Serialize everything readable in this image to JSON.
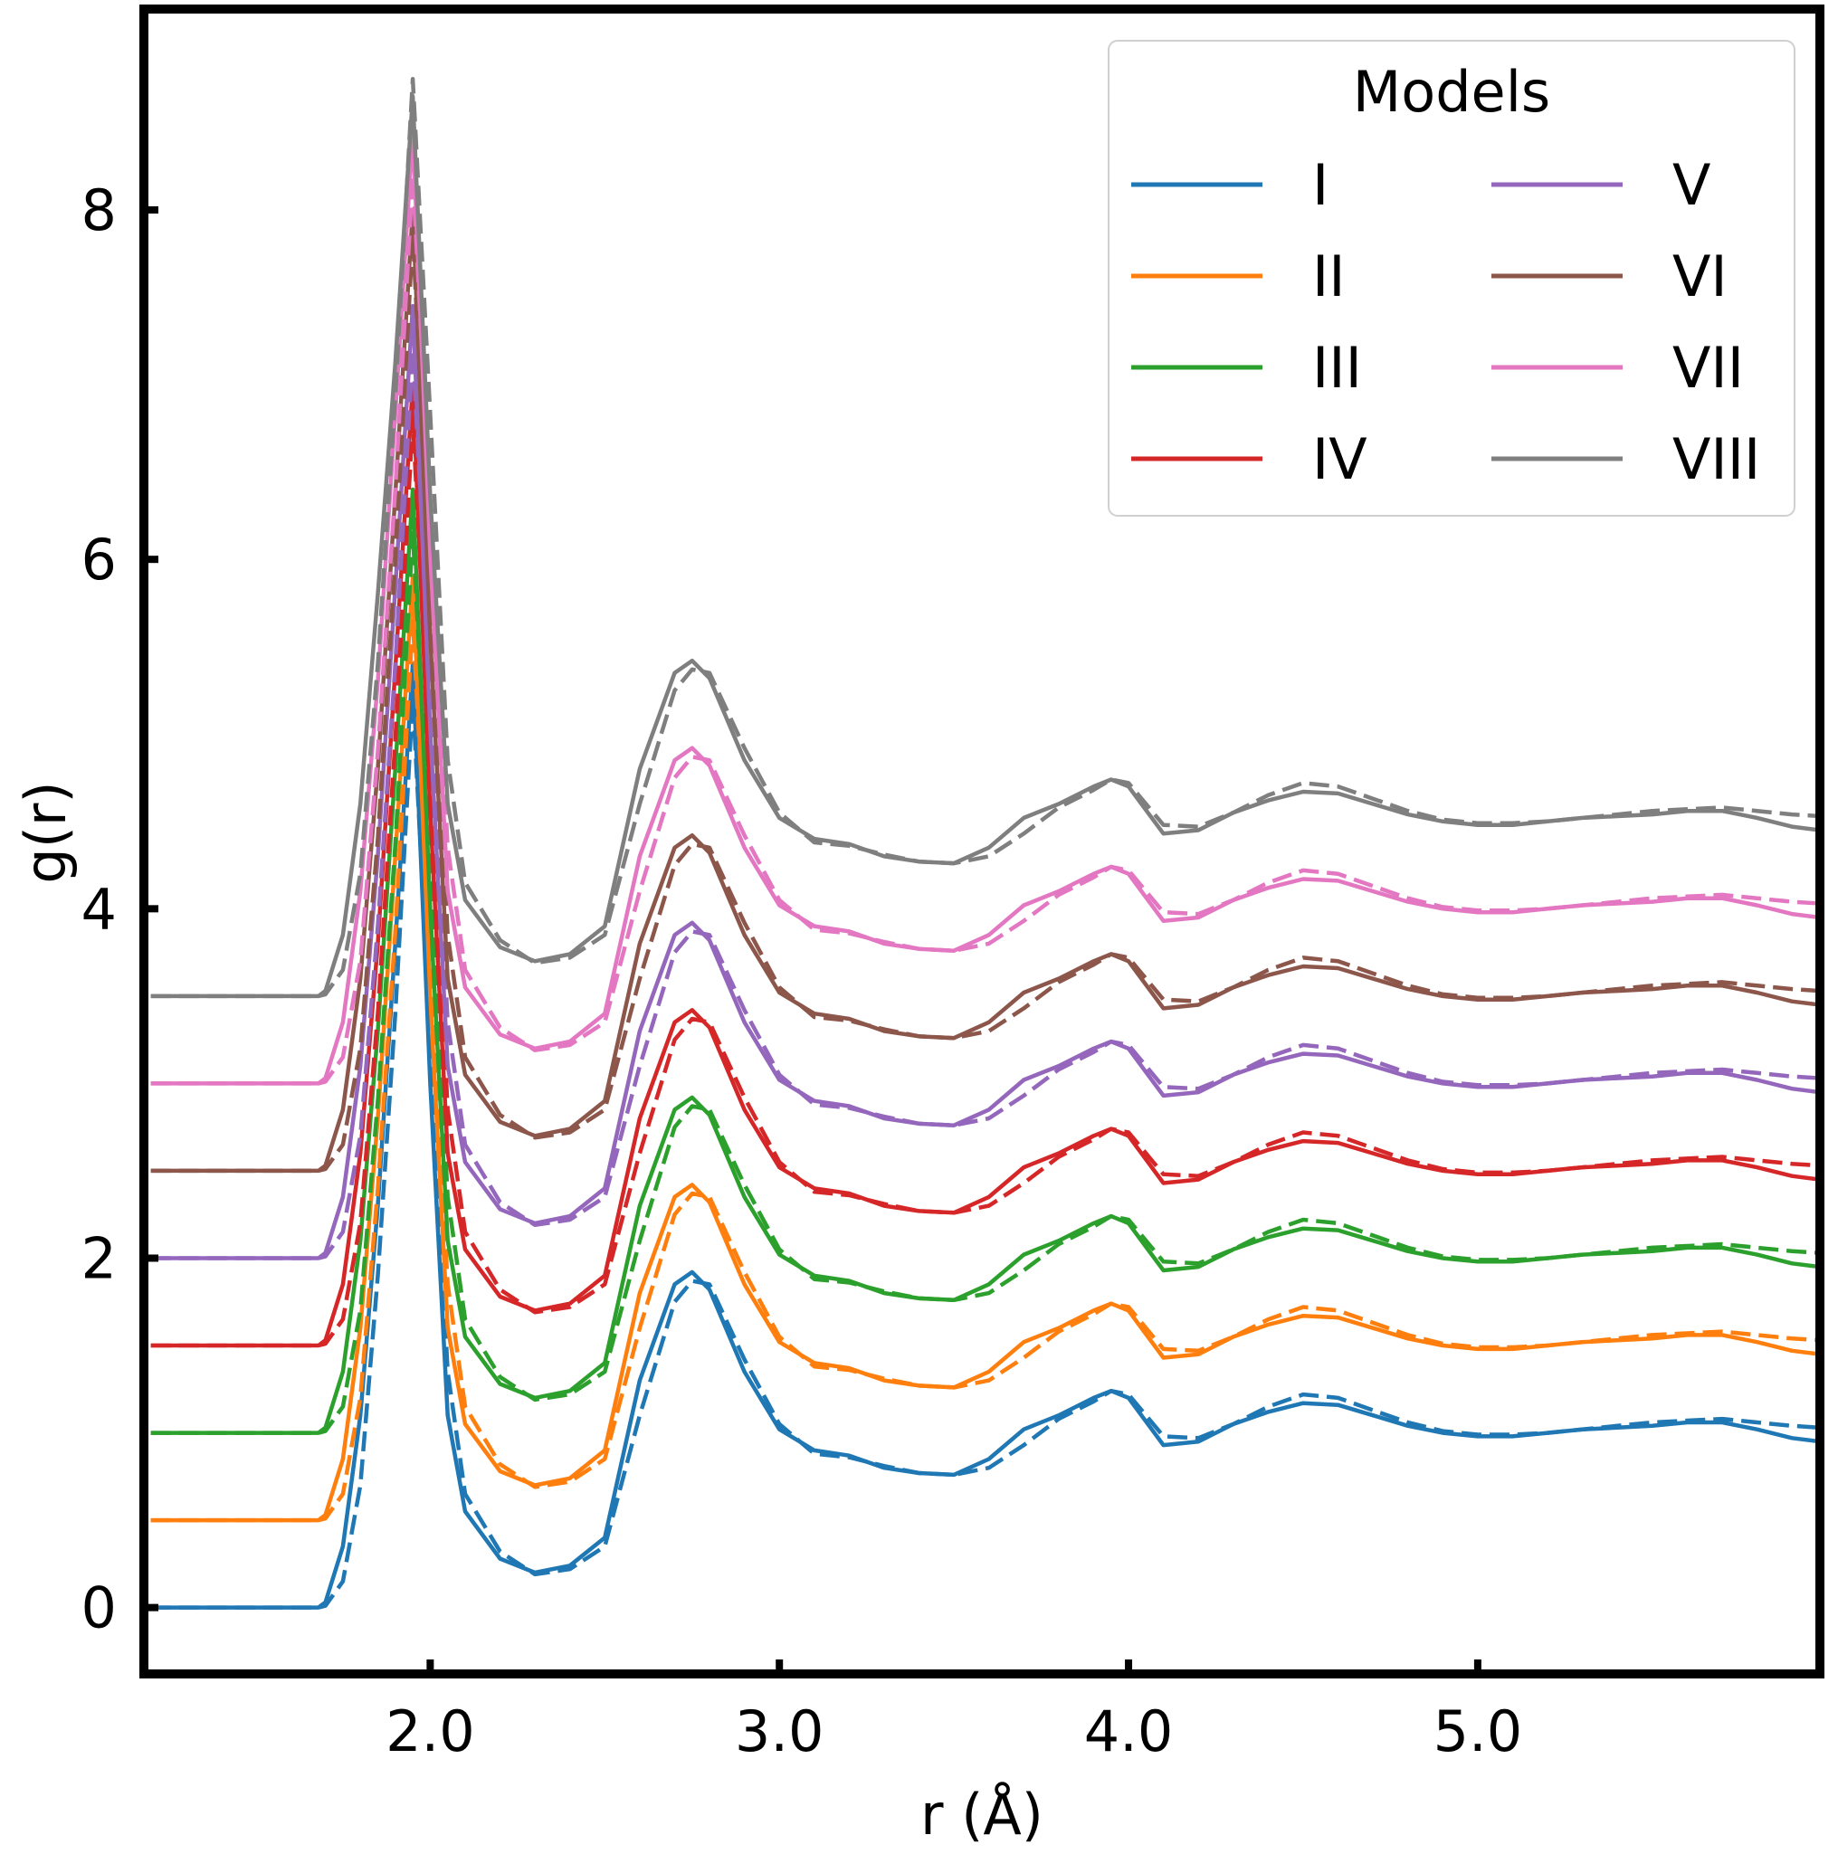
{
  "chart_data": {
    "type": "line",
    "title": "",
    "xlabel": "r (Å)",
    "ylabel": "g(r)",
    "xlim": [
      1.18,
      5.98
    ],
    "ylim": [
      -0.38,
      9.15
    ],
    "xticks": [
      2.0,
      3.0,
      4.0,
      5.0
    ],
    "xtick_labels": [
      "2.0",
      "3.0",
      "4.0",
      "5.0"
    ],
    "yticks": [
      0,
      2,
      4,
      6,
      8
    ],
    "ytick_labels": [
      "0",
      "2",
      "4",
      "6",
      "8"
    ],
    "grid": false,
    "legend": {
      "title": "Models",
      "location": "top-right",
      "columns": 2
    },
    "line_styles": {
      "solid": "model",
      "dashed": "reference"
    },
    "base_curve": {
      "description": "shape of curve I (offset 0); each model is this shape shifted up by its offset with a model-specific first-peak height",
      "r": [
        1.2,
        1.68,
        1.7,
        1.75,
        1.8,
        1.85,
        1.9,
        1.95,
        2.0,
        2.05,
        2.1,
        2.2,
        2.3,
        2.4,
        2.5,
        2.6,
        2.7,
        2.75,
        2.8,
        2.9,
        3.0,
        3.1,
        3.2,
        3.3,
        3.4,
        3.5,
        3.6,
        3.7,
        3.8,
        3.9,
        3.95,
        4.0,
        4.1,
        4.2,
        4.3,
        4.4,
        4.5,
        4.6,
        4.7,
        4.8,
        4.9,
        5.0,
        5.1,
        5.2,
        5.3,
        5.4,
        5.5,
        5.6,
        5.7,
        5.8,
        5.9,
        5.98
      ],
      "solid": [
        0.0,
        0.0,
        0.03,
        0.35,
        1.1,
        2.3,
        3.8,
        5.4,
        3.0,
        1.1,
        0.55,
        0.28,
        0.2,
        0.24,
        0.4,
        1.3,
        1.85,
        1.92,
        1.82,
        1.35,
        1.02,
        0.9,
        0.87,
        0.8,
        0.77,
        0.76,
        0.85,
        1.02,
        1.1,
        1.2,
        1.24,
        1.2,
        0.93,
        0.95,
        1.05,
        1.12,
        1.17,
        1.16,
        1.1,
        1.04,
        1.0,
        0.98,
        0.98,
        1.0,
        1.02,
        1.03,
        1.04,
        1.06,
        1.06,
        1.02,
        0.97,
        0.95
      ],
      "dashed": [
        0.0,
        0.0,
        0.01,
        0.15,
        0.7,
        1.9,
        3.4,
        5.2,
        3.3,
        1.35,
        0.65,
        0.32,
        0.19,
        0.22,
        0.35,
        1.1,
        1.75,
        1.87,
        1.85,
        1.42,
        1.05,
        0.88,
        0.86,
        0.81,
        0.77,
        0.76,
        0.8,
        0.93,
        1.08,
        1.18,
        1.24,
        1.22,
        0.98,
        0.97,
        1.05,
        1.15,
        1.22,
        1.2,
        1.13,
        1.06,
        1.01,
        0.99,
        0.99,
        1.0,
        1.02,
        1.04,
        1.06,
        1.07,
        1.08,
        1.06,
        1.04,
        1.03
      ]
    },
    "series": [
      {
        "name": "I",
        "color": "#1f77b4",
        "offset": 0.0,
        "first_peak_solid": 5.4,
        "first_peak_dashed": 5.2
      },
      {
        "name": "II",
        "color": "#ff7f0e",
        "offset": 0.5,
        "first_peak_solid": 5.9,
        "first_peak_dashed": 5.65
      },
      {
        "name": "III",
        "color": "#2ca02c",
        "offset": 1.0,
        "first_peak_solid": 6.4,
        "first_peak_dashed": 6.15
      },
      {
        "name": "IV",
        "color": "#d62728",
        "offset": 1.5,
        "first_peak_solid": 7.0,
        "first_peak_dashed": 6.8
      },
      {
        "name": "V",
        "color": "#9467bd",
        "offset": 2.0,
        "first_peak_solid": 7.45,
        "first_peak_dashed": 7.2
      },
      {
        "name": "VI",
        "color": "#8c564b",
        "offset": 2.5,
        "first_peak_solid": 8.0,
        "first_peak_dashed": 7.85
      },
      {
        "name": "VII",
        "color": "#e377c2",
        "offset": 3.0,
        "first_peak_solid": 8.45,
        "first_peak_dashed": 8.2
      },
      {
        "name": "VIII",
        "color": "#7f7f7f",
        "offset": 3.5,
        "first_peak_solid": 8.65,
        "first_peak_dashed": 8.75
      }
    ]
  }
}
